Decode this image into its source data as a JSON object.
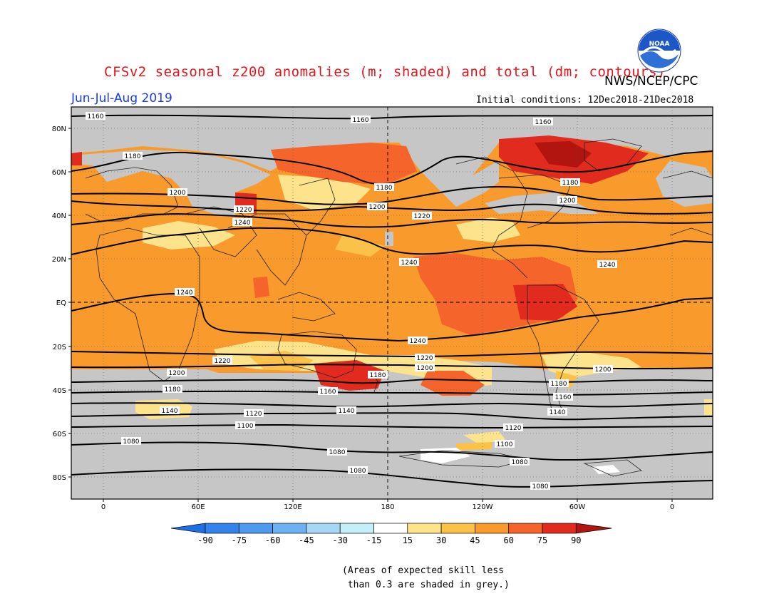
{
  "title": "CFSv2 seasonal z200 anomalies (m; shaded) and total (dm; contours)",
  "agency": "NWS/NCEP/CPC",
  "season": "Jun-Jul-Aug 2019",
  "initial_conditions": "Initial conditions: 12Dec2018-21Dec2018",
  "logo_text": "NOAA",
  "lat_labels": [
    "80N",
    "60N",
    "40N",
    "20N",
    "EQ",
    "20S",
    "40S",
    "60S",
    "80S"
  ],
  "lon_labels": [
    "0",
    "60E",
    "120E",
    "180",
    "120W",
    "60W",
    "0"
  ],
  "colorbar": {
    "labels": [
      "-90",
      "-75",
      "-60",
      "-45",
      "-30",
      "-15",
      "15",
      "30",
      "45",
      "60",
      "75",
      "90"
    ],
    "colors": [
      "#1e6ee6",
      "#3583ea",
      "#4f9aee",
      "#6cb2f2",
      "#a6d7f6",
      "#c4eef8",
      "#ffffff",
      "#fde48c",
      "#fbc24a",
      "#f99a2c",
      "#f5642a",
      "#e12b1e",
      "#b2140f"
    ]
  },
  "skill_mask_color": "#c6c6c6",
  "contour_labels": [
    "1160",
    "1160",
    "1160",
    "1180",
    "1180",
    "1180",
    "1180",
    "1200",
    "1200",
    "1200",
    "1220",
    "1220",
    "1240",
    "1240",
    "1240",
    "1240",
    "1240",
    "1220",
    "1220",
    "1200",
    "1200",
    "1200",
    "1180",
    "1160",
    "1180",
    "1160",
    "1140",
    "1120",
    "1140",
    "1140",
    "1120",
    "1100",
    "1100",
    "1080",
    "1080",
    "1080",
    "1080",
    "1080"
  ],
  "note": "(Areas of expected skill less\n than 0.3 are shaded in grey.)"
}
